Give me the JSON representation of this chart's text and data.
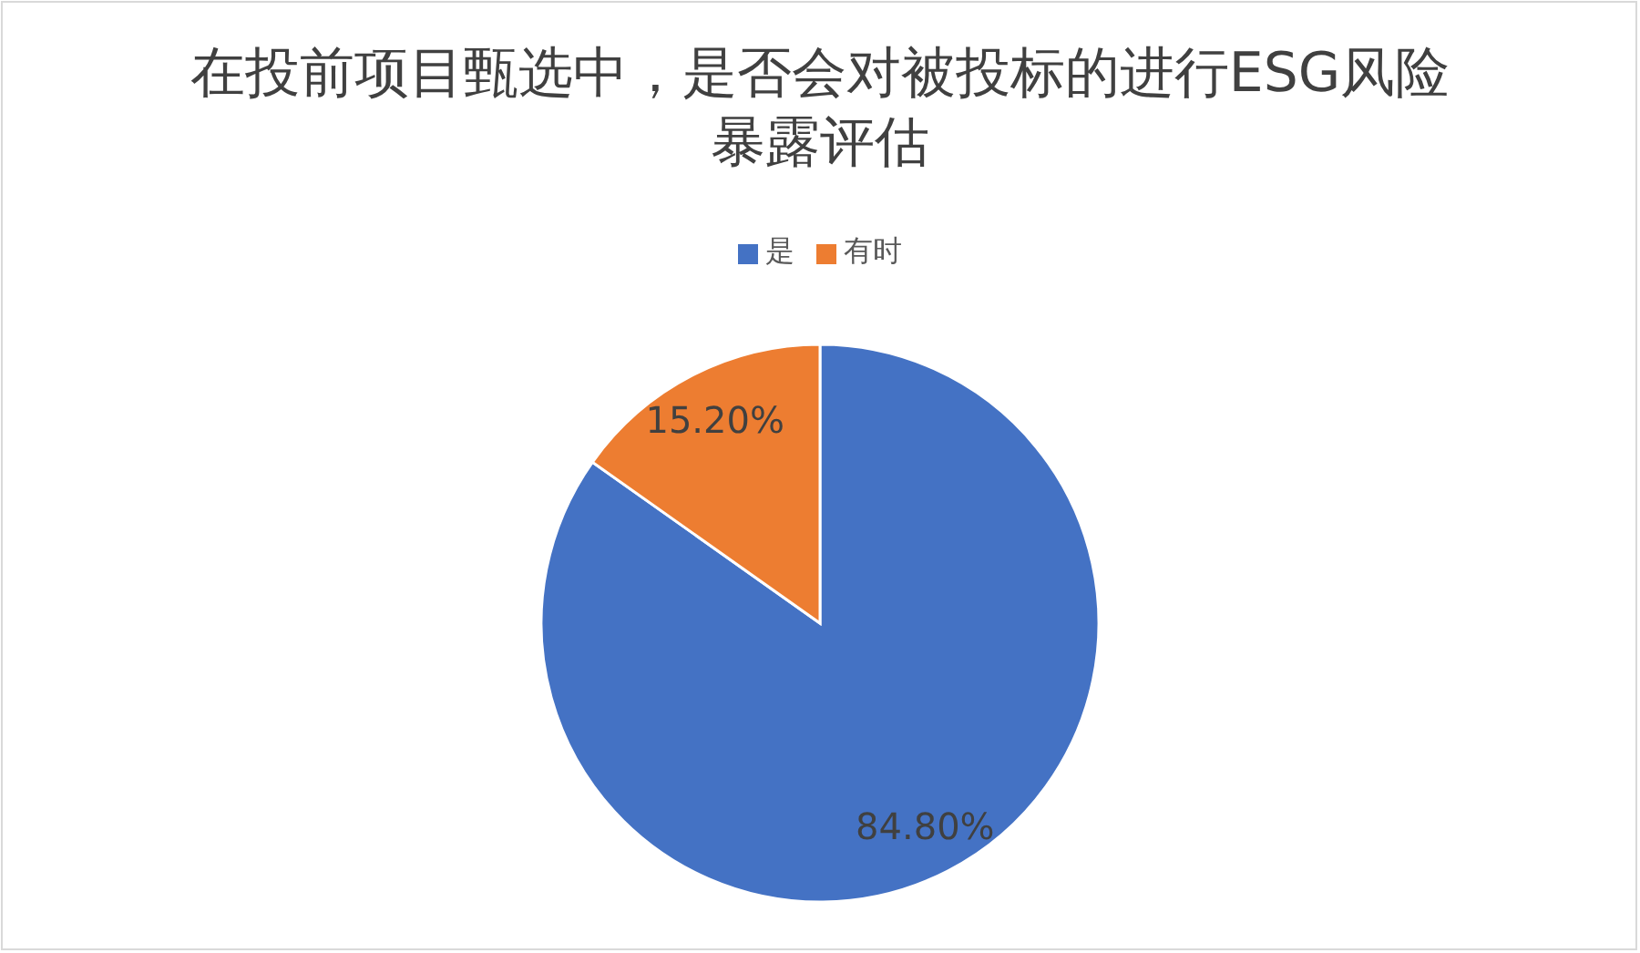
{
  "chart_data": {
    "type": "pie",
    "title": "在投前项目甄选中，是否会对被投标的进行ESG风险暴露评估",
    "categories": [
      "是",
      "有时"
    ],
    "values": [
      84.8,
      15.2
    ],
    "colors": [
      "#4472c4",
      "#ed7d31"
    ],
    "value_labels": [
      "84.80%",
      "15.20%"
    ],
    "legend": "top"
  }
}
